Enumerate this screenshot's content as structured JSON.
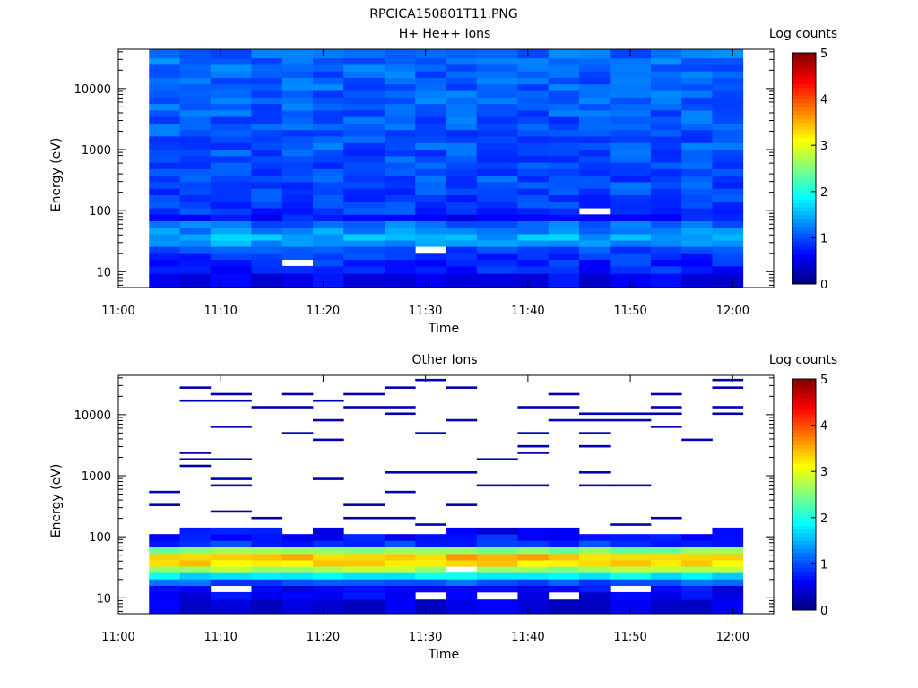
{
  "figure_title": "RPCICA150801T11.PNG",
  "colors": {
    "colormap": [
      "#00007f",
      "#0000ff",
      "#0080ff",
      "#00ffff",
      "#80ff80",
      "#ffff00",
      "#ff8000",
      "#ff0000",
      "#7f0000"
    ],
    "no_data": "#ffffff",
    "axis": "#000000"
  },
  "chart_data": [
    {
      "type": "heatmap",
      "title": "H+ He++ Ions",
      "xlabel": "Time",
      "ylabel": "Energy (eV)",
      "x_tick_labels": [
        "11:00",
        "11:10",
        "11:20",
        "11:30",
        "11:40",
        "11:50",
        "12:00"
      ],
      "y_tick_labels": [
        "10",
        "100",
        "1000",
        "10000"
      ],
      "xlim": [
        "11:00",
        "12:04"
      ],
      "ylim": [
        5.5,
        44000
      ],
      "y_scale": "log",
      "colorbar": {
        "label": "Log counts",
        "range": [
          0,
          5
        ],
        "tick_labels": [
          "0",
          "1",
          "2",
          "3",
          "4",
          "5"
        ]
      },
      "time_bins": [
        "11:03",
        "11:06",
        "11:09",
        "11:13",
        "11:16",
        "11:19",
        "11:22",
        "11:26",
        "11:29",
        "11:32",
        "11:35",
        "11:39",
        "11:42",
        "11:45",
        "11:48",
        "11:52",
        "11:55",
        "11:58"
      ],
      "energy_bins": [
        8,
        11,
        14,
        18,
        23,
        29,
        37,
        47,
        60,
        77,
        98,
        125,
        160,
        205,
        262,
        335,
        428,
        548,
        700,
        895,
        1145,
        1465,
        1873,
        2395,
        3063,
        3917,
        5009,
        6405,
        8190,
        10473,
        13393,
        17126,
        21900,
        28005,
        35813
      ],
      "energy_profile": [
        0.55,
        0.75,
        0.8,
        0.85,
        0.95,
        1.35,
        1.5,
        1.3,
        1.15,
        0.7,
        0.9,
        0.95,
        0.95,
        0.95,
        1.0,
        1.0,
        1.0,
        1.0,
        1.0,
        1.0,
        1.05,
        1.05,
        1.05,
        1.05,
        1.05,
        1.05,
        1.1,
        1.1,
        1.1,
        1.1,
        1.1,
        1.1,
        1.15,
        1.15,
        1.15
      ],
      "variation": 0.22,
      "seed": 7,
      "gaps": [
        [
          4,
          2
        ],
        [
          13,
          10
        ],
        [
          8,
          4
        ]
      ],
      "sparse": 0
    },
    {
      "type": "heatmap",
      "title": "Other Ions",
      "xlabel": "Time",
      "ylabel": "Energy (eV)",
      "x_tick_labels": [
        "11:00",
        "11:10",
        "11:20",
        "11:30",
        "11:40",
        "11:50",
        "12:00"
      ],
      "y_tick_labels": [
        "10",
        "100",
        "1000",
        "10000"
      ],
      "xlim": [
        "11:00",
        "12:04"
      ],
      "ylim": [
        5.5,
        44000
      ],
      "y_scale": "log",
      "colorbar": {
        "label": "Log counts",
        "range": [
          0,
          5
        ],
        "tick_labels": [
          "0",
          "1",
          "2",
          "3",
          "4",
          "5"
        ]
      },
      "time_bins": [
        "11:03",
        "11:06",
        "11:09",
        "11:13",
        "11:16",
        "11:19",
        "11:22",
        "11:26",
        "11:29",
        "11:32",
        "11:35",
        "11:39",
        "11:42",
        "11:45",
        "11:48",
        "11:52",
        "11:55",
        "11:58"
      ],
      "energy_bins": [
        8,
        11,
        14,
        18,
        23,
        29,
        37,
        47,
        60,
        77,
        98,
        125,
        160,
        205,
        262,
        335,
        428,
        548,
        700,
        895,
        1145,
        1465,
        1873,
        2395,
        3063,
        3917,
        5009,
        6405,
        8190,
        10473,
        13393,
        17126,
        21900,
        28005,
        35813
      ],
      "energy_profile": [
        0.45,
        0.55,
        0.6,
        1.05,
        1.8,
        2.7,
        3.3,
        3.45,
        2.5,
        0.85,
        0.7,
        0.6,
        0.45,
        0.4,
        0.35,
        0.35,
        0.3,
        0.3,
        0.3,
        0.3,
        0.3,
        0.3,
        0.3,
        0.3,
        0.3,
        0.3,
        0.3,
        0.3,
        0.3,
        0.3,
        0.3,
        0.3,
        0.3,
        0.3,
        0.3
      ],
      "variation": 0.2,
      "seed": 19,
      "gaps": [
        [
          2,
          2
        ],
        [
          8,
          1
        ],
        [
          10,
          1
        ],
        [
          12,
          1
        ],
        [
          14,
          2
        ],
        [
          9,
          5
        ]
      ],
      "sparse": 1
    }
  ]
}
